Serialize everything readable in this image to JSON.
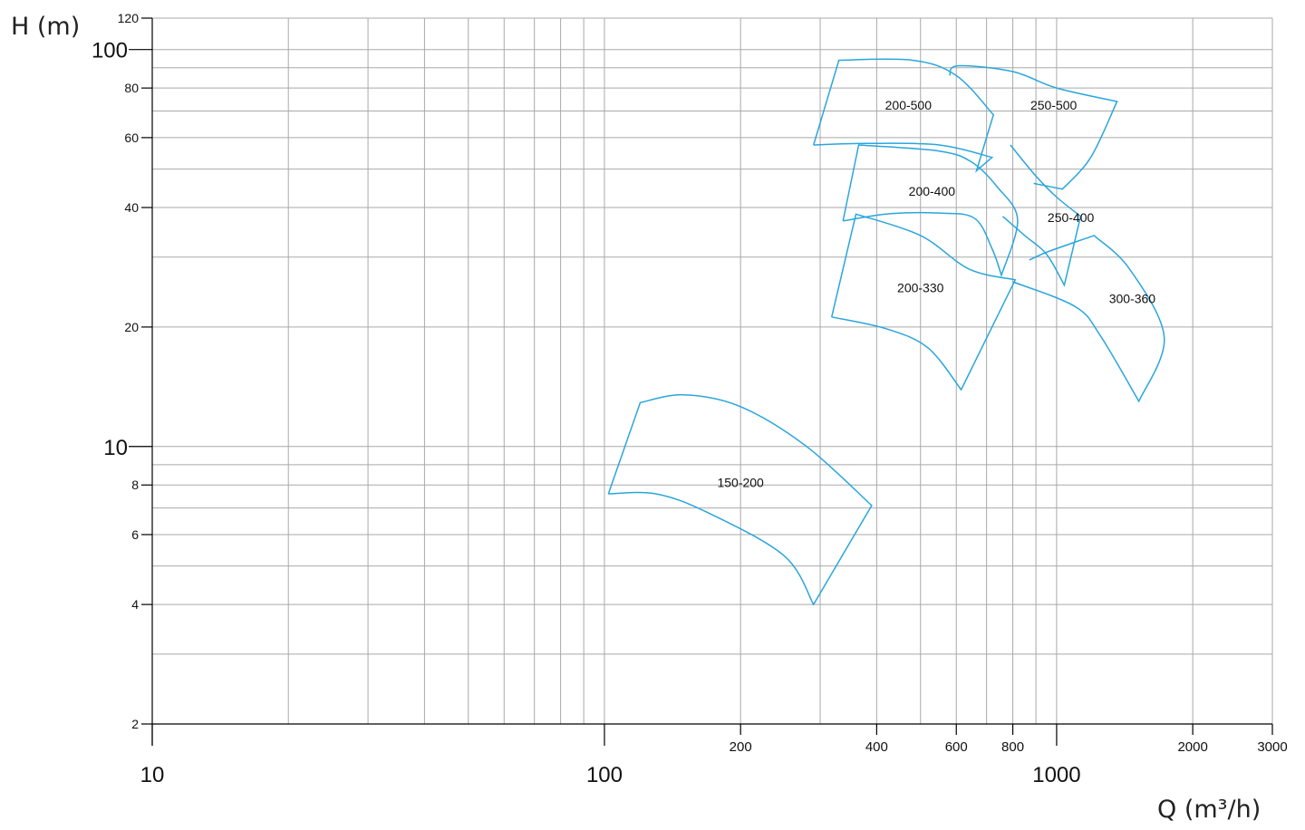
{
  "chart_data": {
    "type": "line",
    "title": "",
    "xlabel": "Q (m³/h)",
    "ylabel": "H (m)",
    "x_scale": "log",
    "y_scale": "log",
    "xlim": [
      10,
      3000
    ],
    "ylim": [
      2,
      120
    ],
    "grid": true,
    "x_ticks": [
      {
        "value": 10,
        "label": "10",
        "major": true
      },
      {
        "value": 100,
        "label": "100",
        "major": true
      },
      {
        "value": 200,
        "label": "200",
        "major": false
      },
      {
        "value": 400,
        "label": "400",
        "major": false
      },
      {
        "value": 600,
        "label": "600",
        "major": false
      },
      {
        "value": 800,
        "label": "800",
        "major": false
      },
      {
        "value": 1000,
        "label": "1000",
        "major": true
      },
      {
        "value": 2000,
        "label": "2000",
        "major": false
      },
      {
        "value": 3000,
        "label": "3000",
        "major": false
      }
    ],
    "x_minor_grid": [
      20,
      30,
      40,
      50,
      60,
      70,
      80,
      90,
      300,
      500,
      700,
      900
    ],
    "y_ticks": [
      {
        "value": 2,
        "label": "2",
        "major": false
      },
      {
        "value": 4,
        "label": "4",
        "major": false
      },
      {
        "value": 6,
        "label": "6",
        "major": false
      },
      {
        "value": 8,
        "label": "8",
        "major": false
      },
      {
        "value": 10,
        "label": "10",
        "major": true
      },
      {
        "value": 20,
        "label": "20",
        "major": false
      },
      {
        "value": 40,
        "label": "40",
        "major": false
      },
      {
        "value": 60,
        "label": "60",
        "major": false
      },
      {
        "value": 80,
        "label": "80",
        "major": false
      },
      {
        "value": 100,
        "label": "100",
        "major": true
      },
      {
        "value": 120,
        "label": "120",
        "major": false
      }
    ],
    "y_minor_grid": [
      3,
      5,
      7,
      9,
      30,
      50,
      70,
      90
    ],
    "series_color": "#2aa6dc",
    "series": [
      {
        "name": "150-200",
        "label_at": [
          200,
          7.9
        ],
        "outline": [
          [
            102,
            7.6
          ],
          [
            120,
            12.9
          ],
          [
            150,
            13.5
          ],
          [
            200,
            12.6
          ],
          [
            280,
            10.0
          ],
          [
            390,
            7.1
          ],
          [
            290,
            4.0
          ],
          [
            250,
            5.3
          ],
          [
            170,
            6.8
          ],
          [
            130,
            7.6
          ],
          [
            102,
            7.6
          ]
        ]
      },
      {
        "name": "200-330",
        "label_at": [
          500,
          24.5
        ],
        "outline": [
          [
            318,
            21.2
          ],
          [
            360,
            38.5
          ],
          [
            500,
            34.0
          ],
          [
            640,
            28.0
          ],
          [
            810,
            26.3
          ],
          [
            615,
            13.9
          ],
          [
            520,
            17.7
          ],
          [
            420,
            19.8
          ],
          [
            318,
            21.2
          ]
        ]
      },
      {
        "name": "200-400",
        "label_at": [
          530,
          42.8
        ],
        "outline": [
          [
            337,
            37.0
          ],
          [
            365,
            57.5
          ],
          [
            550,
            55.5
          ],
          [
            650,
            52.0
          ],
          [
            740,
            45.0
          ],
          [
            820,
            37.2
          ],
          [
            755,
            27.0
          ],
          [
            720,
            31.5
          ],
          [
            660,
            37.5
          ],
          [
            560,
            38.7
          ],
          [
            430,
            38.6
          ],
          [
            337,
            37.0
          ]
        ]
      },
      {
        "name": "200-500",
        "label_at": [
          470,
          70.5
        ],
        "outline": [
          [
            290,
            57.5
          ],
          [
            330,
            94.0
          ],
          [
            480,
            94.0
          ],
          [
            600,
            86.0
          ],
          [
            725,
            68.5
          ],
          [
            665,
            49.5
          ],
          [
            720,
            53.5
          ],
          [
            550,
            57.5
          ],
          [
            380,
            58.0
          ],
          [
            290,
            57.5
          ]
        ]
      },
      {
        "name": "250-400",
        "label_at": [
          1075,
          36.8
        ],
        "outline": [
          [
            790,
            57.5
          ],
          [
            900,
            48.0
          ],
          [
            1000,
            42.5
          ],
          [
            1130,
            38.0
          ],
          [
            1040,
            25.5
          ],
          [
            950,
            30.5
          ],
          [
            850,
            34.0
          ],
          [
            760,
            38.0
          ]
        ]
      },
      {
        "name": "250-500",
        "label_at": [
          985,
          70.5
        ],
        "outline": [
          [
            580,
            86.0
          ],
          [
            605,
            91.0
          ],
          [
            800,
            88.0
          ],
          [
            1000,
            80.0
          ],
          [
            1360,
            74.0
          ],
          [
            1190,
            53.5
          ],
          [
            1030,
            44.5
          ],
          [
            890,
            46.0
          ]
        ]
      },
      {
        "name": "300-360",
        "label_at": [
          1470,
          23.0
        ],
        "outline": [
          [
            870,
            29.5
          ],
          [
            960,
            31.0
          ],
          [
            1210,
            34.0
          ],
          [
            1450,
            28.0
          ],
          [
            1730,
            18.8
          ],
          [
            1520,
            13.0
          ],
          [
            1250,
            19.0
          ],
          [
            1100,
            22.5
          ],
          [
            800,
            26.0
          ]
        ]
      }
    ]
  }
}
